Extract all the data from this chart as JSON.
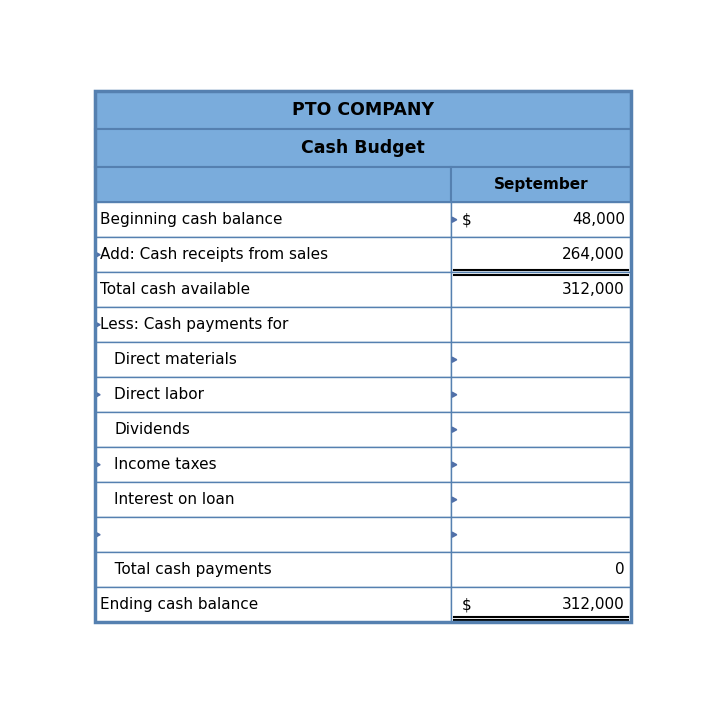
{
  "title1": "PTO COMPANY",
  "title2": "Cash Budget",
  "col_header": "September",
  "rows": [
    {
      "label": "Beginning cash balance",
      "value": "48,000",
      "dollar": "$",
      "indent": 0,
      "left_arrow": false,
      "right_arrow": true,
      "top_line": false,
      "double_bottom": false
    },
    {
      "label": "Add: Cash receipts from sales",
      "value": "264,000",
      "dollar": "",
      "indent": 0,
      "left_arrow": true,
      "right_arrow": false,
      "top_line": false,
      "double_bottom": false
    },
    {
      "label": "Total cash available",
      "value": "312,000",
      "dollar": "",
      "indent": 0,
      "left_arrow": false,
      "right_arrow": false,
      "top_line": true,
      "double_bottom": false
    },
    {
      "label": "Less: Cash payments for",
      "value": "",
      "dollar": "",
      "indent": 0,
      "left_arrow": true,
      "right_arrow": false,
      "top_line": false,
      "double_bottom": false
    },
    {
      "label": "Direct materials",
      "value": "",
      "dollar": "",
      "indent": 1,
      "left_arrow": false,
      "right_arrow": true,
      "top_line": false,
      "double_bottom": false
    },
    {
      "label": "Direct labor",
      "value": "",
      "dollar": "",
      "indent": 1,
      "left_arrow": true,
      "right_arrow": true,
      "top_line": false,
      "double_bottom": false
    },
    {
      "label": "Dividends",
      "value": "",
      "dollar": "",
      "indent": 1,
      "left_arrow": false,
      "right_arrow": true,
      "top_line": false,
      "double_bottom": false
    },
    {
      "label": "Income taxes",
      "value": "",
      "dollar": "",
      "indent": 1,
      "left_arrow": true,
      "right_arrow": true,
      "top_line": false,
      "double_bottom": false
    },
    {
      "label": "Interest on loan",
      "value": "",
      "dollar": "",
      "indent": 1,
      "left_arrow": false,
      "right_arrow": true,
      "top_line": false,
      "double_bottom": false
    },
    {
      "label": "",
      "value": "",
      "dollar": "",
      "indent": 0,
      "left_arrow": true,
      "right_arrow": true,
      "top_line": false,
      "double_bottom": false
    },
    {
      "label": "   Total cash payments",
      "value": "0",
      "dollar": "",
      "indent": 0,
      "left_arrow": false,
      "right_arrow": false,
      "top_line": false,
      "double_bottom": false
    },
    {
      "label": "Ending cash balance",
      "value": "312,000",
      "dollar": "$",
      "indent": 0,
      "left_arrow": false,
      "right_arrow": false,
      "top_line": false,
      "double_bottom": true
    }
  ],
  "title_bg": "#7aacdc",
  "col_header_bg": "#7aacdc",
  "row_bg": "#ffffff",
  "border_color": "#5580b0",
  "arrow_color": "#5070a8",
  "text_color": "#000000",
  "title_fontsize": 12.5,
  "body_fontsize": 11.0,
  "col_split": 0.665,
  "fig_w": 7.08,
  "fig_h": 7.06,
  "dpi": 100
}
